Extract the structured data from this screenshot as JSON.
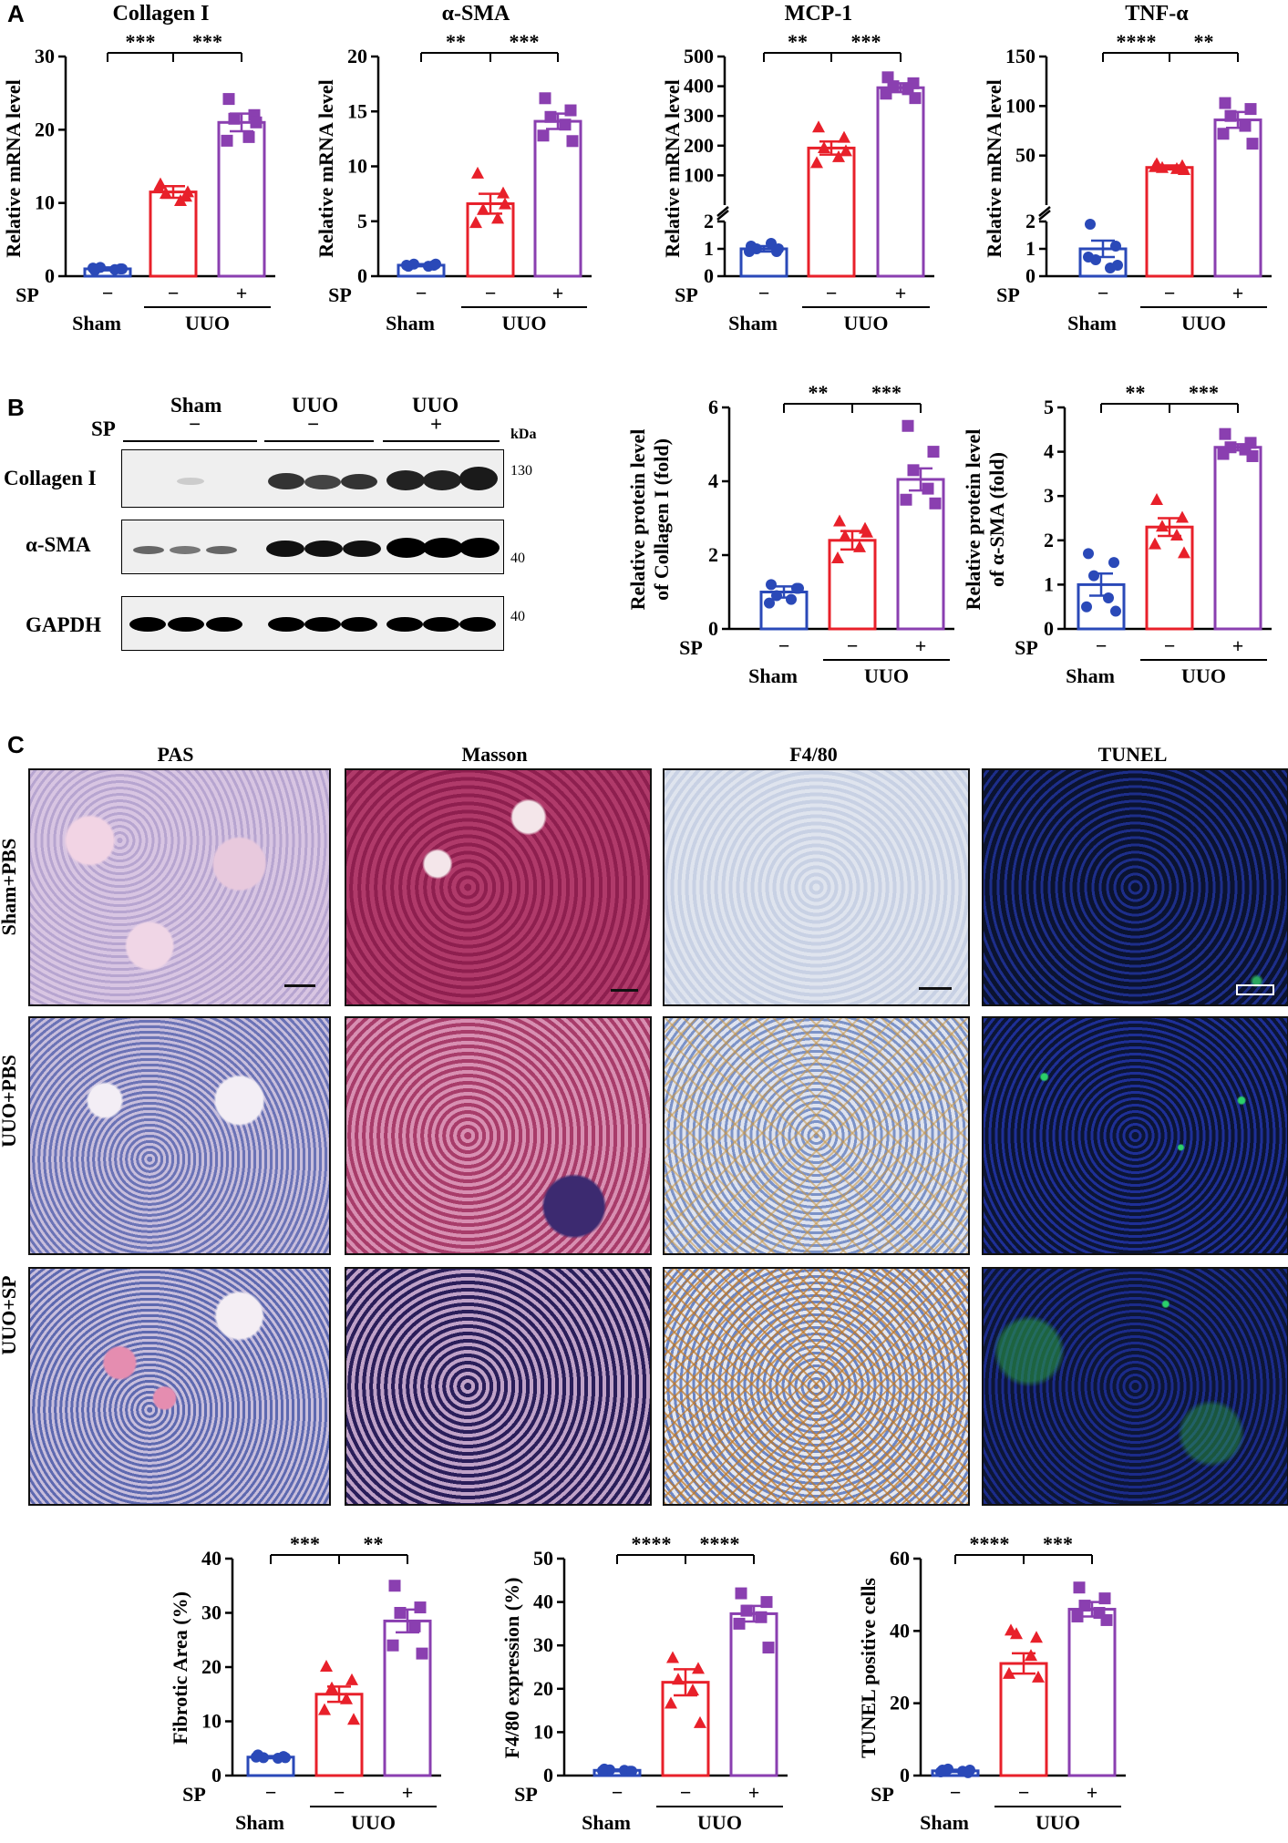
{
  "panels": {
    "a": "A",
    "b": "B",
    "c": "C"
  },
  "colors": {
    "sham": "#2a49b8",
    "uuo": "#e8202a",
    "uuo_sp": "#8a3fb0"
  },
  "axis_labels": {
    "mrna": "Relative mRNA level",
    "prot_col": [
      "Relative protein level",
      "of Collagen I (fold)"
    ],
    "prot_sma": [
      "Relative protein level",
      "of α-SMA (fold)"
    ],
    "fibrotic": "Fibrotic Area (%)",
    "f480": "F4/80 expression (%)",
    "tunel": "TUNEL positive cells"
  },
  "groups": {
    "sp": "SP",
    "minus": "−",
    "plus": "+",
    "sham": "Sham",
    "uuo": "UUO"
  },
  "blot": {
    "col_headers": [
      "Sham",
      "UUO",
      "UUO"
    ],
    "col_signs": [
      "−",
      "−",
      "+"
    ],
    "sp_label": "SP",
    "kda_label": "kDa",
    "rows": [
      {
        "label": "Collagen I",
        "kda": "130"
      },
      {
        "label": "α-SMA",
        "kda": "40"
      },
      {
        "label": "GAPDH",
        "kda": "40"
      }
    ]
  },
  "histology": {
    "columns": [
      "PAS",
      "Masson",
      "F4/80",
      "TUNEL"
    ],
    "rows": [
      "Sham+PBS",
      "UUO+PBS",
      "UUO+SP"
    ]
  },
  "chart_data": [
    {
      "id": "a1",
      "type": "bar",
      "title": "Collagen I",
      "ylim": [
        0,
        30
      ],
      "ticks": [
        0,
        10,
        20,
        30
      ],
      "values": [
        1.0,
        11.5,
        21.0
      ],
      "sem": [
        0.2,
        0.8,
        1.2
      ],
      "points": [
        [
          0.8,
          1.0,
          1.2,
          0.9,
          1.1,
          1.0
        ],
        [
          12.5,
          10.8,
          11.2,
          10.2,
          12.0,
          11.4
        ],
        [
          24.2,
          22.0,
          21.5,
          19.0,
          18.5,
          21.0
        ]
      ],
      "sig": [
        [
          "0",
          "1",
          "***"
        ],
        [
          "1",
          "2",
          "***"
        ]
      ]
    },
    {
      "id": "a2",
      "type": "bar",
      "title": "α-SMA",
      "ylim": [
        0,
        20
      ],
      "ticks": [
        0,
        5,
        10,
        15,
        20
      ],
      "values": [
        1.0,
        6.6,
        14.1
      ],
      "sem": [
        0.1,
        0.9,
        0.7
      ],
      "points": [
        [
          0.9,
          1.0,
          1.1,
          0.9,
          1.0,
          1.1
        ],
        [
          9.3,
          7.5,
          6.0,
          5.2,
          4.8,
          6.5
        ],
        [
          16.2,
          15.1,
          14.5,
          13.8,
          12.8,
          12.3
        ]
      ],
      "sig": [
        [
          "0",
          "1",
          "**"
        ],
        [
          "1",
          "2",
          "***"
        ]
      ]
    },
    {
      "id": "a3",
      "type": "bar-broken",
      "title": "MCP-1",
      "lower_ticks": [
        0,
        1,
        2
      ],
      "upper_ticks": [
        100,
        200,
        300,
        400,
        500
      ],
      "upper_ylim": [
        0,
        500
      ],
      "values": [
        1.0,
        192,
        395
      ],
      "sem": [
        0.1,
        22,
        15
      ],
      "points": [
        [
          1.1,
          0.9,
          1.0,
          1.2,
          0.9,
          1.0
        ],
        [
          260,
          225,
          190,
          160,
          140,
          180
        ],
        [
          430,
          410,
          400,
          390,
          375,
          360
        ]
      ],
      "sig": [
        [
          "0",
          "1",
          "**"
        ],
        [
          "1",
          "2",
          "***"
        ]
      ]
    },
    {
      "id": "a4",
      "type": "bar-broken",
      "title": "TNF-α",
      "lower_ticks": [
        0,
        1,
        2
      ],
      "upper_ticks": [
        50,
        100,
        150
      ],
      "upper_ylim": [
        0,
        150
      ],
      "values": [
        1.0,
        38,
        86
      ],
      "sem": [
        0.3,
        2,
        8
      ],
      "points": [
        [
          1.9,
          1.1,
          0.6,
          0.3,
          0.7,
          0.4
        ],
        [
          41,
          39,
          37,
          36,
          38,
          35
        ],
        [
          103,
          97,
          90,
          80,
          72,
          62
        ]
      ],
      "sig": [
        [
          "0",
          "1",
          "****"
        ],
        [
          "1",
          "2",
          "**"
        ]
      ]
    },
    {
      "id": "b1",
      "type": "bar",
      "ylim": [
        0,
        6
      ],
      "ticks": [
        0,
        2,
        4,
        6
      ],
      "values": [
        1.0,
        2.4,
        4.05
      ],
      "sem": [
        0.15,
        0.25,
        0.3
      ],
      "points": [
        [
          1.2,
          1.1,
          0.9,
          0.8,
          0.7,
          1.1
        ],
        [
          2.9,
          2.7,
          2.5,
          2.2,
          1.9,
          2.6
        ],
        [
          5.5,
          4.8,
          4.3,
          3.8,
          3.5,
          3.4
        ]
      ],
      "sig": [
        [
          "0",
          "1",
          "**"
        ],
        [
          "1",
          "2",
          "***"
        ]
      ]
    },
    {
      "id": "b2",
      "type": "bar",
      "ylim": [
        0,
        5
      ],
      "ticks": [
        0,
        1,
        2,
        3,
        4,
        5
      ],
      "values": [
        1.0,
        2.3,
        4.1
      ],
      "sem": [
        0.25,
        0.2,
        0.07
      ],
      "points": [
        [
          1.7,
          1.5,
          1.2,
          0.7,
          0.5,
          0.4
        ],
        [
          2.9,
          2.5,
          2.3,
          2.1,
          1.9,
          1.7
        ],
        [
          4.4,
          4.2,
          4.1,
          4.05,
          3.95,
          3.9
        ]
      ],
      "sig": [
        [
          "0",
          "1",
          "**"
        ],
        [
          "1",
          "2",
          "***"
        ]
      ]
    },
    {
      "id": "c1",
      "type": "bar",
      "ylim": [
        0,
        40
      ],
      "ticks": [
        0,
        10,
        20,
        30,
        40
      ],
      "values": [
        3.4,
        15.0,
        28.5
      ],
      "sem": [
        0.2,
        1.4,
        2.1
      ],
      "points": [
        [
          3.8,
          3.5,
          3.3,
          3.2,
          3.4,
          3.3
        ],
        [
          20.0,
          17.5,
          16.0,
          14.0,
          12.0,
          10.2
        ],
        [
          35.0,
          31.0,
          30.0,
          27.5,
          24.0,
          22.5
        ]
      ],
      "sig": [
        [
          "0",
          "1",
          "***"
        ],
        [
          "1",
          "2",
          "**"
        ]
      ]
    },
    {
      "id": "c2",
      "type": "bar",
      "ylim": [
        0,
        50
      ],
      "ticks": [
        0,
        10,
        20,
        30,
        40,
        50
      ],
      "values": [
        1.2,
        21.5,
        37.3
      ],
      "sem": [
        0.2,
        3.0,
        1.8
      ],
      "points": [
        [
          1.5,
          1.0,
          1.3,
          1.2,
          1.1,
          1.0
        ],
        [
          27.0,
          24.5,
          22.0,
          19.5,
          16.5,
          12.0
        ],
        [
          42.0,
          40.0,
          38.0,
          36.5,
          35.0,
          29.5
        ]
      ],
      "sig": [
        [
          "0",
          "1",
          "****"
        ],
        [
          "1",
          "2",
          "****"
        ]
      ]
    },
    {
      "id": "c3",
      "type": "bar",
      "ylim": [
        0,
        60
      ],
      "ticks": [
        0,
        20,
        40,
        60
      ],
      "values": [
        1.3,
        31.0,
        46.0
      ],
      "sem": [
        0.3,
        2.8,
        2.0
      ],
      "points": [
        [
          1.5,
          0.8,
          1.8,
          1.2,
          1.0,
          1.5
        ],
        [
          40.0,
          38.0,
          39.0,
          33.0,
          28.0,
          27.0
        ],
        [
          52.0,
          49.0,
          47.0,
          45.0,
          44.0,
          43.0
        ]
      ],
      "sig": [
        [
          "0",
          "1",
          "****"
        ],
        [
          "1",
          "2",
          "***"
        ]
      ]
    }
  ]
}
